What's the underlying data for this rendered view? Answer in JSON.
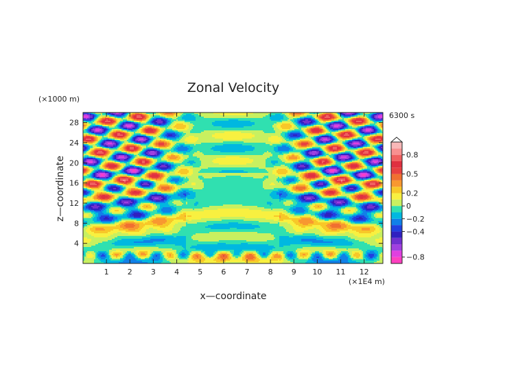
{
  "chart_data": {
    "type": "heatmap",
    "title": "Zonal Velocity",
    "xlabel": "x—coordinate",
    "ylabel": "z—coordinate",
    "x_unit": "(×1E4 m)",
    "y_unit": "(×1000 m)",
    "time_label": "6300 s",
    "xlim": [
      0,
      12.8
    ],
    "ylim": [
      0,
      30
    ],
    "x_ticks": [
      "1",
      "2",
      "3",
      "4",
      "5",
      "6",
      "7",
      "8",
      "9",
      "10",
      "11",
      "12"
    ],
    "y_ticks": [
      "4",
      "8",
      "12",
      "16",
      "20",
      "24",
      "28"
    ],
    "grid": false,
    "legend": "right",
    "colorbar": {
      "levels": [
        -0.9,
        -0.8,
        -0.7,
        -0.6,
        -0.5,
        -0.4,
        -0.3,
        -0.2,
        -0.1,
        0,
        0.1,
        0.2,
        0.3,
        0.4,
        0.5,
        0.6,
        0.7,
        0.8,
        0.9,
        1.0
      ],
      "colors": [
        "#ff40c0",
        "#e040e0",
        "#a040e0",
        "#7030d0",
        "#3020c0",
        "#2040e0",
        "#1080e8",
        "#00b8e0",
        "#30e0b0",
        "#c8f060",
        "#f8f040",
        "#f8c828",
        "#f89830",
        "#f07030",
        "#e84040",
        "#e03040",
        "#f06060",
        "#f89090",
        "#f8b8b8"
      ],
      "tick_labels": [
        "0.8",
        "0.5",
        "0.2",
        "0",
        "−0.2",
        "−0.4",
        "−0.8"
      ],
      "tick_values": [
        0.8,
        0.5,
        0.2,
        0,
        -0.2,
        -0.4,
        -0.8
      ]
    }
  }
}
